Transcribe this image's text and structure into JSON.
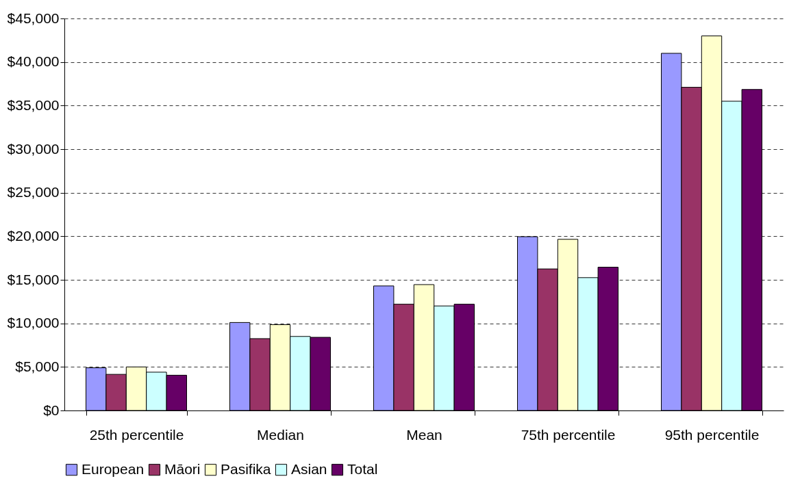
{
  "chart_data": {
    "type": "bar",
    "categories": [
      "25th percentile",
      "Median",
      "Mean",
      "75th percentile",
      "95th percentile"
    ],
    "series": [
      {
        "name": "European",
        "color": "#9999ff",
        "values": [
          4900,
          10100,
          14300,
          19950,
          41000
        ]
      },
      {
        "name": "Māori",
        "color": "#993366",
        "values": [
          4150,
          8250,
          12200,
          16250,
          37100
        ]
      },
      {
        "name": "Pasifika",
        "color": "#ffffcc",
        "values": [
          5000,
          9850,
          14450,
          19650,
          43000
        ]
      },
      {
        "name": "Asian",
        "color": "#ccffff",
        "values": [
          4400,
          8500,
          12000,
          15250,
          35500
        ]
      },
      {
        "name": "Total",
        "color": "#660066",
        "values": [
          4050,
          8400,
          12200,
          16450,
          36850
        ]
      }
    ],
    "ylim": [
      0,
      45000
    ],
    "yticks": [
      {
        "value": 0,
        "label": "$0"
      },
      {
        "value": 5000,
        "label": "$5,000"
      },
      {
        "value": 10000,
        "label": "$10,000"
      },
      {
        "value": 15000,
        "label": "$15,000"
      },
      {
        "value": 20000,
        "label": "$20,000"
      },
      {
        "value": 25000,
        "label": "$25,000"
      },
      {
        "value": 30000,
        "label": "$30,000"
      },
      {
        "value": 35000,
        "label": "$35,000"
      },
      {
        "value": 40000,
        "label": "$40,000"
      },
      {
        "value": 45000,
        "label": "$45,000"
      }
    ],
    "grid": "y",
    "legend": "bottom"
  }
}
